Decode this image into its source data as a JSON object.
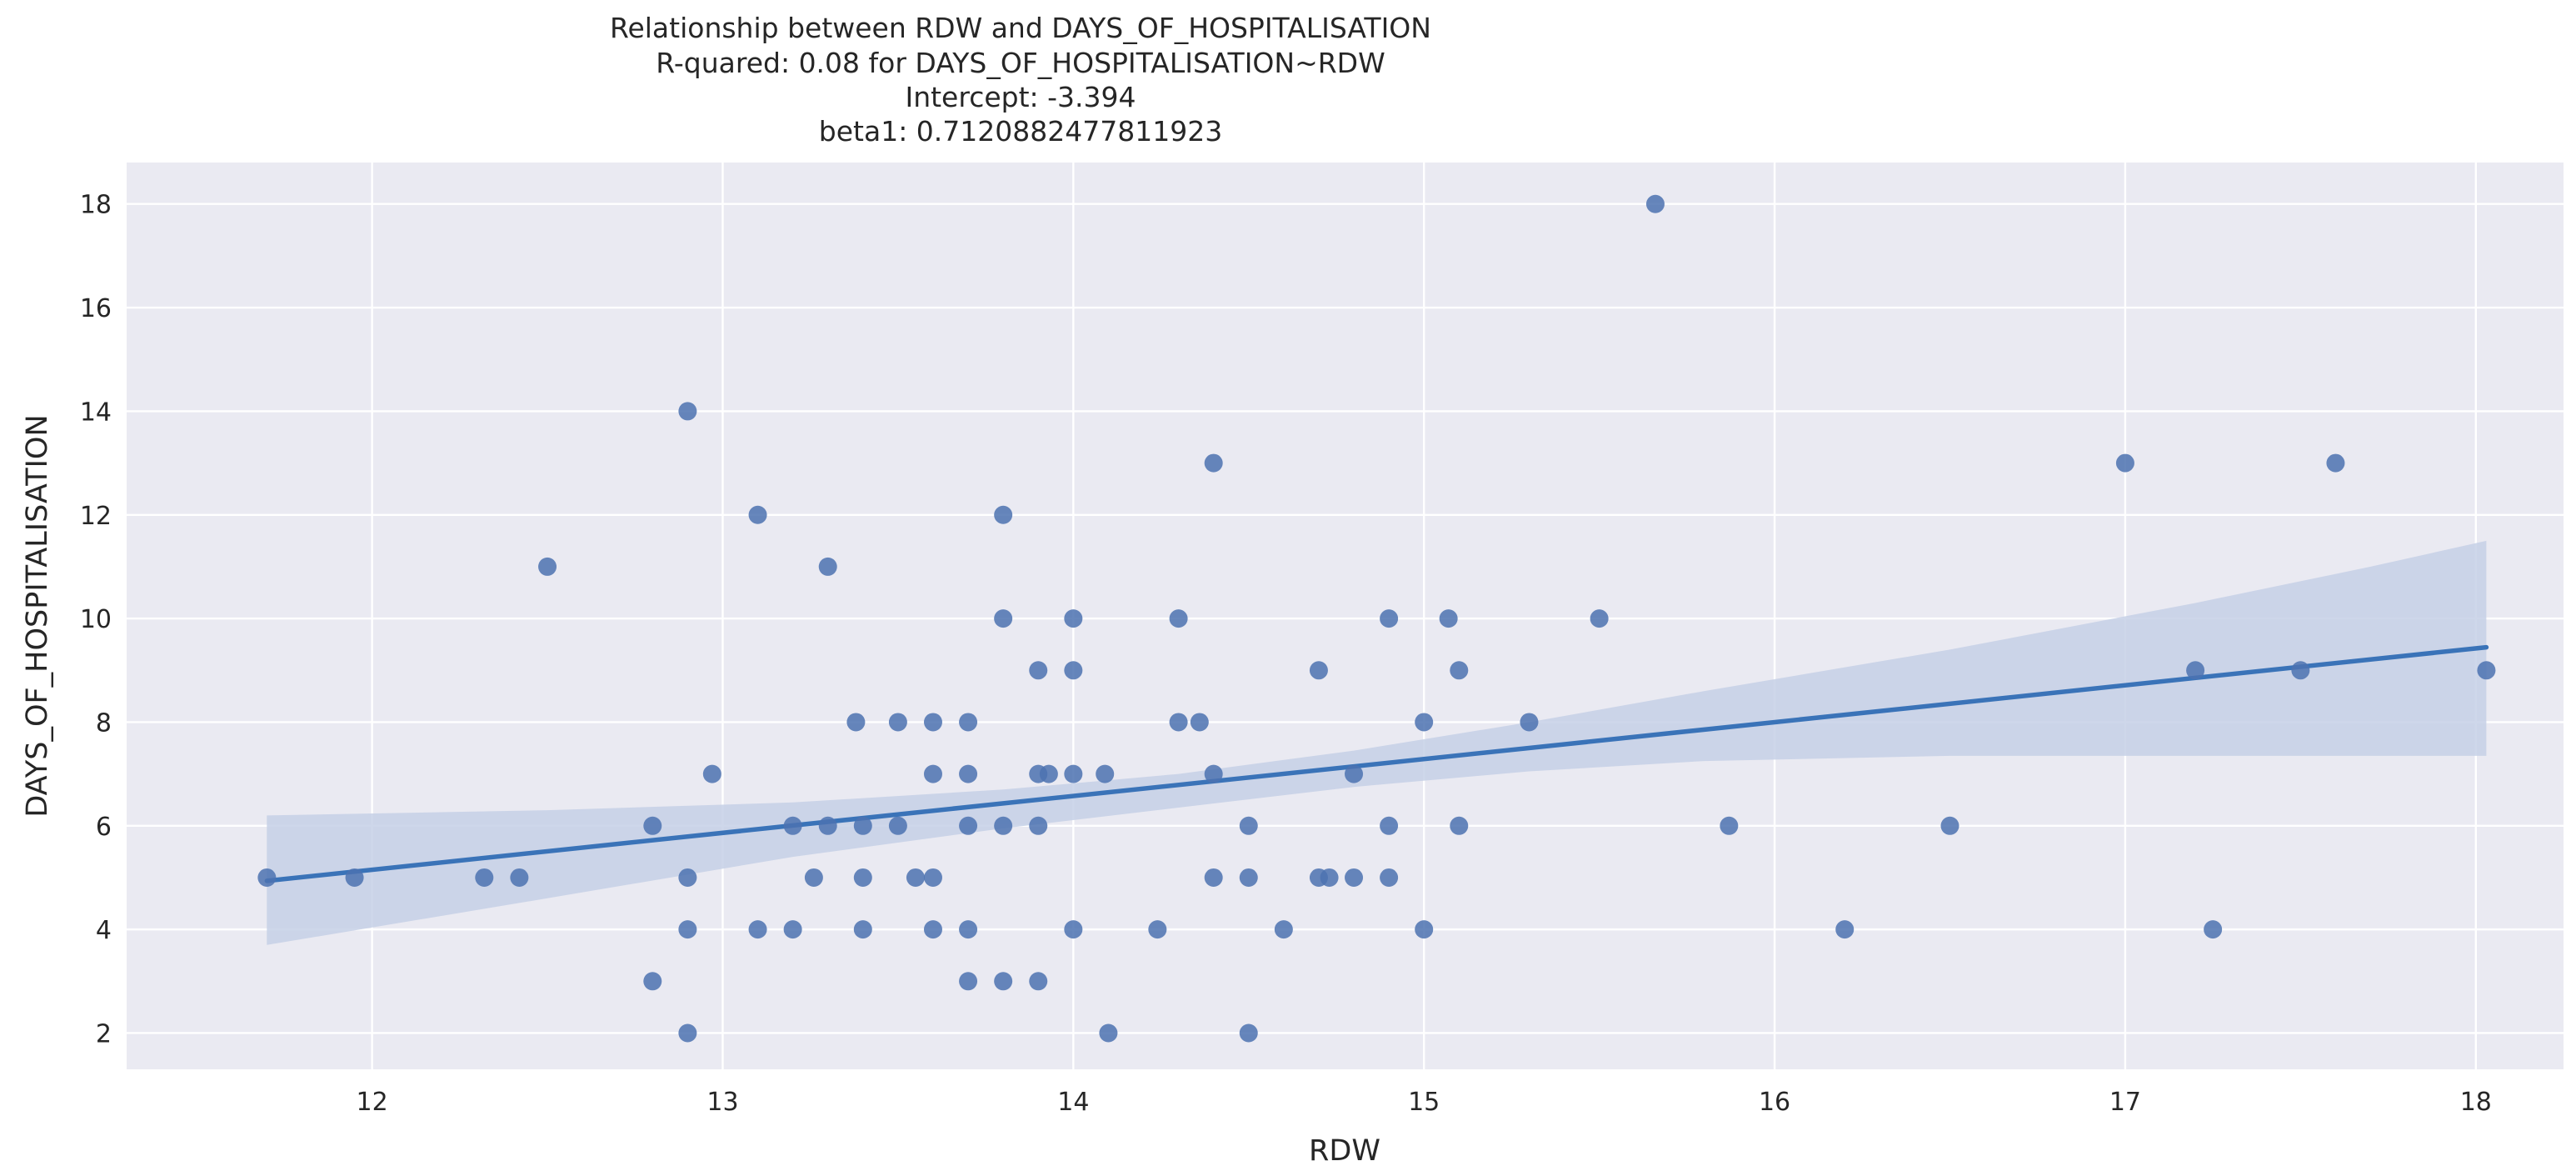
{
  "chart_data": {
    "type": "scatter",
    "title_lines": [
      "Relationship between RDW and DAYS_OF_HOSPITALISATION",
      "R-quared: 0.08 for DAYS_OF_HOSPITALISATION~RDW",
      "Intercept: -3.394",
      "beta1: 0.7120882477811923"
    ],
    "xlabel": "RDW",
    "ylabel": "DAYS_OF_HOSPITALISATION",
    "xlim": [
      11.3,
      18.25
    ],
    "ylim": [
      1.3,
      18.8
    ],
    "xticks": [
      12,
      13,
      14,
      15,
      16,
      17,
      18
    ],
    "yticks": [
      2,
      4,
      6,
      8,
      10,
      12,
      14,
      16,
      18
    ],
    "grid": true,
    "colors": {
      "plot_background": "#eaeaf2",
      "grid": "#ffffff",
      "points": "#4c72b0",
      "regression_line": "#3a73b8",
      "confidence_band": "#c5d0e6"
    },
    "regression": {
      "intercept": -3.394,
      "slope": 0.7120882477811923,
      "x_range": [
        11.7,
        18.03
      ]
    },
    "confidence_band": {
      "x": [
        11.7,
        12.5,
        13.2,
        13.8,
        14.3,
        14.8,
        15.3,
        15.8,
        16.5,
        17.2,
        17.7,
        18.03
      ],
      "upper": [
        6.2,
        6.3,
        6.45,
        6.7,
        7.0,
        7.45,
        8.0,
        8.6,
        9.4,
        10.3,
        11.0,
        11.5
      ],
      "lower": [
        3.7,
        4.6,
        5.4,
        5.95,
        6.35,
        6.75,
        7.05,
        7.25,
        7.35,
        7.35,
        7.35,
        7.35
      ]
    },
    "points": [
      [
        11.7,
        5
      ],
      [
        11.95,
        5
      ],
      [
        12.32,
        5
      ],
      [
        12.42,
        5
      ],
      [
        12.5,
        11
      ],
      [
        12.8,
        6
      ],
      [
        12.8,
        3
      ],
      [
        12.9,
        14
      ],
      [
        12.9,
        5
      ],
      [
        12.9,
        4
      ],
      [
        12.9,
        2
      ],
      [
        12.97,
        7
      ],
      [
        13.1,
        12
      ],
      [
        13.1,
        4
      ],
      [
        13.2,
        6
      ],
      [
        13.2,
        4
      ],
      [
        13.26,
        5
      ],
      [
        13.3,
        11
      ],
      [
        13.3,
        6
      ],
      [
        13.38,
        8
      ],
      [
        13.4,
        6
      ],
      [
        13.4,
        5
      ],
      [
        13.4,
        4
      ],
      [
        13.5,
        8
      ],
      [
        13.5,
        6
      ],
      [
        13.55,
        5
      ],
      [
        13.6,
        8
      ],
      [
        13.6,
        7
      ],
      [
        13.6,
        5
      ],
      [
        13.6,
        4
      ],
      [
        13.7,
        8
      ],
      [
        13.7,
        7
      ],
      [
        13.7,
        6
      ],
      [
        13.7,
        4
      ],
      [
        13.7,
        3
      ],
      [
        13.8,
        12
      ],
      [
        13.8,
        10
      ],
      [
        13.8,
        6
      ],
      [
        13.8,
        3
      ],
      [
        13.9,
        9
      ],
      [
        13.9,
        7
      ],
      [
        13.9,
        6
      ],
      [
        13.9,
        3
      ],
      [
        13.93,
        7
      ],
      [
        14.0,
        10
      ],
      [
        14.0,
        9
      ],
      [
        14.0,
        7
      ],
      [
        14.0,
        4
      ],
      [
        14.09,
        7
      ],
      [
        14.1,
        2
      ],
      [
        14.24,
        4
      ],
      [
        14.3,
        10
      ],
      [
        14.3,
        8
      ],
      [
        14.36,
        8
      ],
      [
        14.4,
        13
      ],
      [
        14.4,
        7
      ],
      [
        14.4,
        5
      ],
      [
        14.5,
        6
      ],
      [
        14.5,
        5
      ],
      [
        14.5,
        2
      ],
      [
        14.6,
        4
      ],
      [
        14.7,
        9
      ],
      [
        14.7,
        5
      ],
      [
        14.73,
        5
      ],
      [
        14.8,
        7
      ],
      [
        14.8,
        5
      ],
      [
        14.9,
        10
      ],
      [
        14.9,
        6
      ],
      [
        14.9,
        5
      ],
      [
        15.0,
        8
      ],
      [
        15.0,
        4
      ],
      [
        15.07,
        10
      ],
      [
        15.1,
        9
      ],
      [
        15.1,
        6
      ],
      [
        15.3,
        8
      ],
      [
        15.5,
        10
      ],
      [
        15.66,
        18
      ],
      [
        15.87,
        6
      ],
      [
        16.2,
        4
      ],
      [
        16.5,
        6
      ],
      [
        17.0,
        13
      ],
      [
        17.2,
        9
      ],
      [
        17.25,
        4
      ],
      [
        17.5,
        9
      ],
      [
        17.6,
        13
      ],
      [
        18.03,
        9
      ]
    ]
  }
}
